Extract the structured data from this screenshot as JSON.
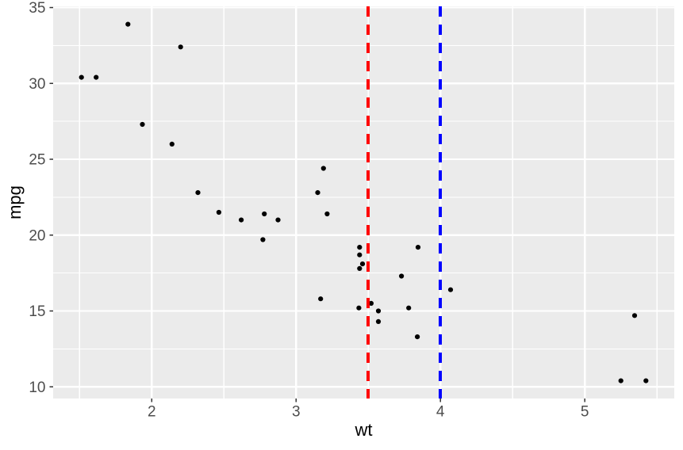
{
  "chart_data": {
    "type": "scatter",
    "title": "",
    "xlabel": "wt",
    "ylabel": "mpg",
    "xlim": [
      1.317,
      5.62
    ],
    "ylim": [
      9.23,
      35.08
    ],
    "x_ticks": [
      2,
      3,
      4,
      5
    ],
    "y_ticks": [
      10,
      15,
      20,
      25,
      30,
      35
    ],
    "x_minor_ticks": [
      1.5,
      2.5,
      3.5,
      4.5,
      5.5
    ],
    "y_minor_ticks": [
      12.5,
      17.5,
      22.5,
      27.5,
      32.5
    ],
    "grid": true,
    "legend": false,
    "theme": {
      "panel_bg": "#EBEBEB",
      "grid_color": "#FFFFFF",
      "point_color": "#000000",
      "tick_label_color": "#4D4D4D",
      "tick_mark_color": "#333333",
      "axis_title_color": "#000000",
      "red": "#FF0000",
      "blue": "#0000FF"
    },
    "series": [
      {
        "name": "points",
        "points": [
          [
            2.62,
            21.0
          ],
          [
            2.875,
            21.0
          ],
          [
            2.32,
            22.8
          ],
          [
            3.215,
            21.4
          ],
          [
            3.44,
            18.7
          ],
          [
            3.46,
            18.1
          ],
          [
            3.57,
            14.3
          ],
          [
            3.19,
            24.4
          ],
          [
            3.15,
            22.8
          ],
          [
            3.44,
            19.2
          ],
          [
            3.44,
            17.8
          ],
          [
            4.07,
            16.4
          ],
          [
            3.73,
            17.3
          ],
          [
            3.78,
            15.2
          ],
          [
            5.25,
            10.4
          ],
          [
            5.424,
            10.4
          ],
          [
            5.345,
            14.7
          ],
          [
            2.2,
            32.4
          ],
          [
            1.615,
            30.4
          ],
          [
            1.835,
            33.9
          ],
          [
            2.465,
            21.5
          ],
          [
            3.52,
            15.5
          ],
          [
            3.435,
            15.2
          ],
          [
            3.84,
            13.3
          ],
          [
            3.845,
            19.2
          ],
          [
            1.935,
            27.3
          ],
          [
            2.14,
            26.0
          ],
          [
            1.513,
            30.4
          ],
          [
            3.17,
            15.8
          ],
          [
            2.77,
            19.7
          ],
          [
            3.57,
            15.0
          ],
          [
            2.78,
            21.4
          ]
        ]
      }
    ],
    "vlines": [
      {
        "x": 3.5,
        "color": "#FF0000",
        "linetype": "dashed",
        "name": "red-dashed-vline"
      },
      {
        "x": 4.0,
        "color": "#0000FF",
        "linetype": "dashed",
        "name": "blue-dashed-vline"
      }
    ]
  }
}
